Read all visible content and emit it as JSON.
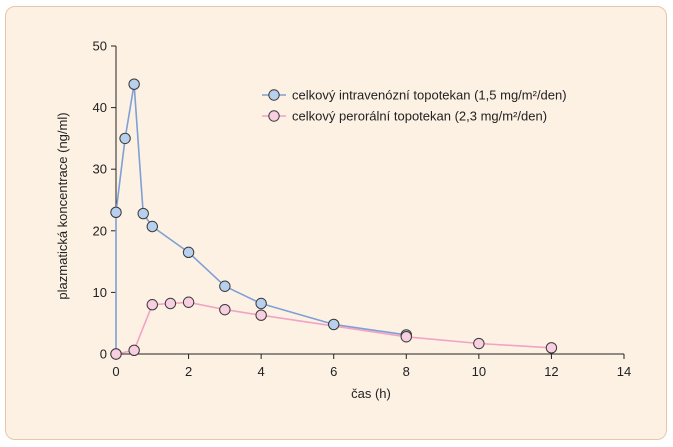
{
  "chart_data": {
    "type": "line",
    "xlabel": "čas (h)",
    "ylabel": "plazmatická koncentrace (ng/ml)",
    "xlim": [
      0,
      14
    ],
    "ylim": [
      0,
      50
    ],
    "x_ticks": [
      0,
      2,
      4,
      6,
      8,
      10,
      12,
      14
    ],
    "y_ticks": [
      0,
      10,
      20,
      30,
      40,
      50
    ],
    "grid": false,
    "legend_position": "top-right",
    "series": [
      {
        "name": "celkový intravenózní topotekan (1,5 mg/m²/den)",
        "line_color": "#7f9fd6",
        "marker_fill": "#b7d0ee",
        "x": [
          0,
          0,
          0.25,
          0.5,
          0.75,
          1,
          2,
          3,
          4,
          6,
          8
        ],
        "y": [
          0,
          23,
          35,
          43.8,
          22.8,
          20.7,
          16.5,
          11.0,
          8.2,
          4.8,
          3.1
        ]
      },
      {
        "name": "celkový perorální topotekan (2,3 mg/m²/den)",
        "line_color": "#f2a3c4",
        "marker_fill": "#f7cfe0",
        "x": [
          0,
          0.5,
          1,
          1.5,
          2,
          3,
          4,
          8,
          10,
          12
        ],
        "y": [
          0,
          0.6,
          8.0,
          8.2,
          8.4,
          7.2,
          6.3,
          2.8,
          1.7,
          1.0
        ]
      }
    ]
  }
}
